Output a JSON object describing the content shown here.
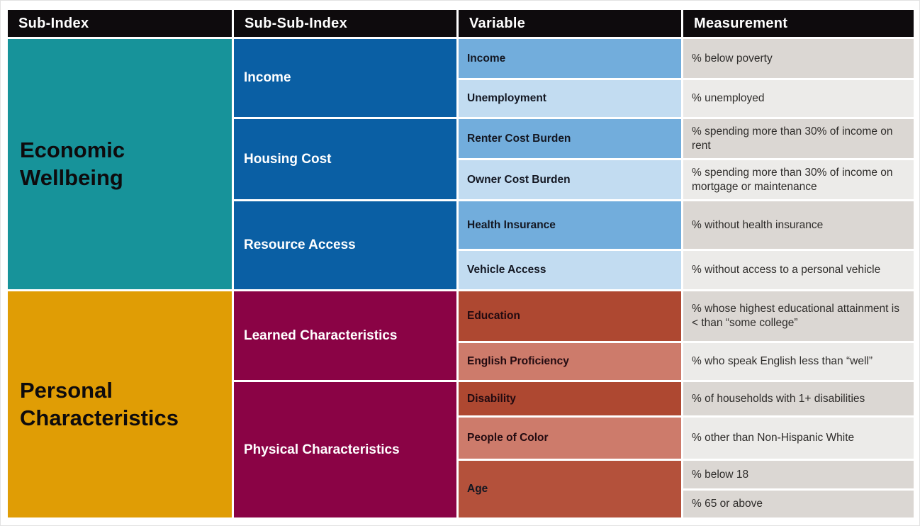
{
  "headers": {
    "col1": "Sub-Index",
    "col2": "Sub-Sub-Index",
    "col3": "Variable",
    "col4": "Measurement"
  },
  "sub_indexes": {
    "economic": "Economic Wellbeing",
    "personal": "Personal Characteristics"
  },
  "sub_sub_indexes": {
    "income": "Income",
    "housing_cost": "Housing Cost",
    "resource_access": "Resource Access",
    "learned_characteristics": "Learned Characteristics",
    "physical_characteristics": "Physical Characteristics"
  },
  "variables": {
    "income": "Income",
    "unemployment": "Unemployment",
    "renter_cost_burden": "Renter Cost Burden",
    "owner_cost_burden": "Owner Cost Burden",
    "health_insurance": "Health Insurance",
    "vehicle_access": "Vehicle Access",
    "education": "Education",
    "english_proficiency": "English Proficiency",
    "disability": "Disability",
    "people_of_color": "People of Color",
    "age": "Age"
  },
  "measurements": {
    "income": "% below poverty",
    "unemployment": "% unemployed",
    "renter_cost_burden": "% spending more than 30% of income on rent",
    "owner_cost_burden": "% spending more than 30% of income on mortgage or maintenance",
    "health_insurance": "% without health insurance",
    "vehicle_access": "% without access to a personal vehicle",
    "education": "% whose highest educational attainment is < than “some college”",
    "english_proficiency": "% who speak English less than “well”",
    "disability": "% of households with 1+ disabilities",
    "people_of_color": "% other than Non-Hispanic White",
    "age_below": "% below 18",
    "age_above": "% 65 or above"
  },
  "colors": {
    "header_bg": "#0e0b0d",
    "economic_bg": "#17939a",
    "personal_bg": "#e09d05",
    "sub_sub_blue": "#0a5fa4",
    "sub_sub_maroon": "#8a0345",
    "variable_blue_dark": "#72addc",
    "variable_blue_light": "#c2dcf1",
    "variable_red_dark": "#ae4831",
    "variable_red_light": "#cd7b6b",
    "variable_age": "#b4513b",
    "measurement_gray_dark": "#dbd7d3",
    "measurement_gray_light": "#ecebe9"
  }
}
